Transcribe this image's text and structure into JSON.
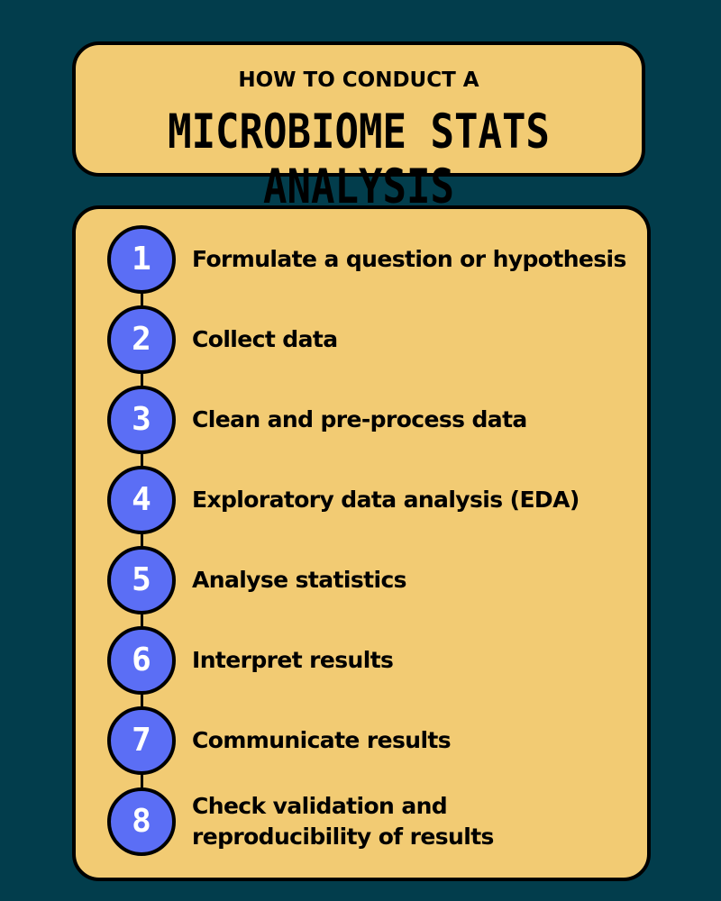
{
  "header": {
    "subtitle": "HOW TO CONDUCT A",
    "title": "MICROBIOME STATS ANALYSIS"
  },
  "steps": [
    {
      "number": "1",
      "label": "Formulate a question or hypothesis"
    },
    {
      "number": "2",
      "label": "Collect data"
    },
    {
      "number": "3",
      "label": "Clean and pre-process data"
    },
    {
      "number": "4",
      "label": "Exploratory data analysis (EDA)"
    },
    {
      "number": "5",
      "label": "Analyse statistics"
    },
    {
      "number": "6",
      "label": "Interpret results"
    },
    {
      "number": "7",
      "label": "Communicate results"
    },
    {
      "number": "8",
      "label": "Check validation and reproducibility of results"
    }
  ],
  "colors": {
    "background": "#023D4C",
    "card": "#F2CB73",
    "step_circle": "#5B6EF5",
    "outline": "#000000"
  }
}
